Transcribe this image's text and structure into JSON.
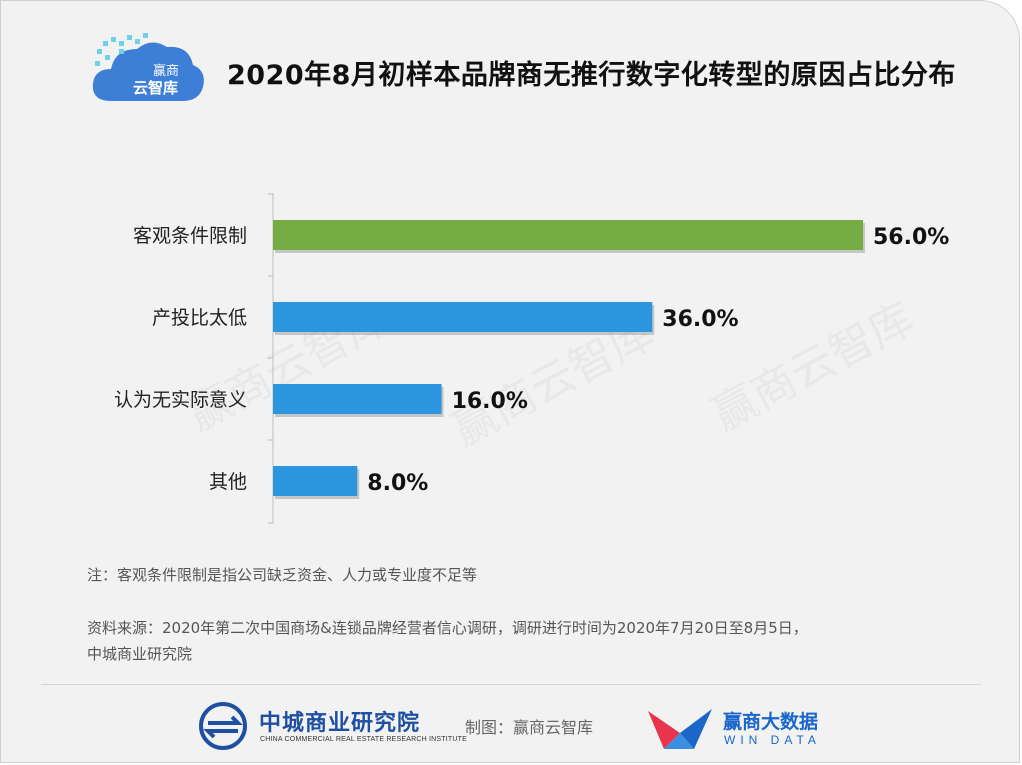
{
  "header": {
    "logo_line1": "赢商",
    "logo_line2": "云智库",
    "title": "2020年8月初样本品牌商无推行数字化转型的原因占比分布"
  },
  "chart_data": {
    "type": "bar",
    "orientation": "horizontal",
    "categories": [
      "客观条件限制",
      "产投比太低",
      "认为无实际意义",
      "其他"
    ],
    "values": [
      56.0,
      36.0,
      16.0,
      8.0
    ],
    "value_labels": [
      "56.0%",
      "36.0%",
      "16.0%",
      "8.0%"
    ],
    "unit": "%",
    "xlim": [
      0,
      56
    ],
    "colors": [
      "#76ac44",
      "#2b95e0",
      "#2b95e0",
      "#2b95e0"
    ],
    "grid": false,
    "title": "2020年8月初样本品牌商无推行数字化转型的原因占比分布"
  },
  "watermark": "赢商云智库",
  "notes": {
    "note": "注：客观条件限制是指公司缺乏资金、人力或专业度不足等",
    "source_line1": "资料来源：2020年第二次中国商场&连锁品牌经营者信心调研，调研进行时间为2020年7月20日至8月5日，",
    "source_line2": "中城商业研究院"
  },
  "footer": {
    "org_name": "中城商业研究院",
    "org_name_en": "CHINA COMMERCIAL REAL ESTATE RESEARCH INSTITUTE",
    "maker": "制图：赢商云智库",
    "win_cn": "赢商大数据",
    "win_en": "WIN DATA"
  }
}
